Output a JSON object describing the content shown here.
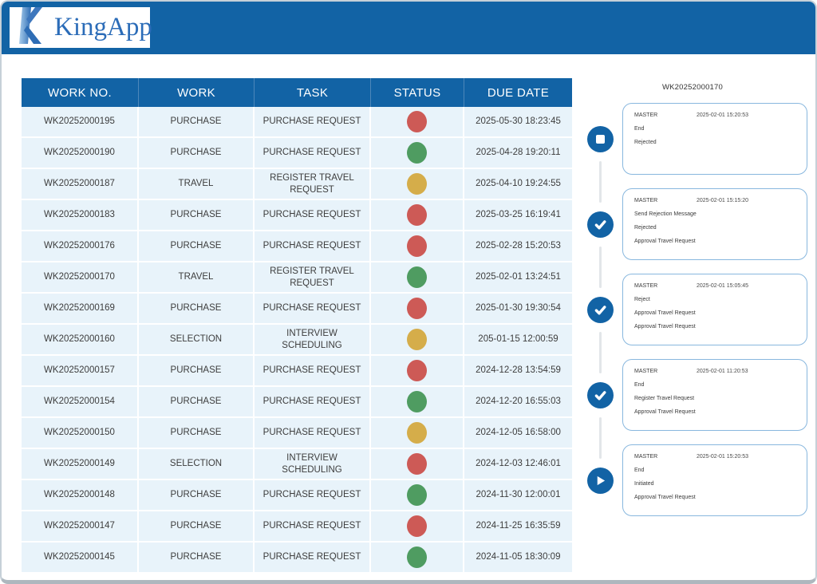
{
  "header": {
    "app_name": "KingApp"
  },
  "accent_color": "#1263a5",
  "status_colors": {
    "red": "#cd5a56",
    "green": "#4f9c61",
    "yellow": "#d5ad4a"
  },
  "table": {
    "columns": [
      "WORK NO.",
      "WORK",
      "TASK",
      "STATUS",
      "DUE DATE"
    ],
    "rows": [
      {
        "work_no": "WK20252000195",
        "work": "PURCHASE",
        "task": "PURCHASE REQUEST",
        "status": "red",
        "due": "2025-05-30 18:23:45"
      },
      {
        "work_no": "WK20252000190",
        "work": "PURCHASE",
        "task": "PURCHASE REQUEST",
        "status": "green",
        "due": "2025-04-28 19:20:11"
      },
      {
        "work_no": "WK20252000187",
        "work": "TRAVEL",
        "task": "REGISTER TRAVEL REQUEST",
        "status": "yellow",
        "due": "2025-04-10 19:24:55"
      },
      {
        "work_no": "WK20252000183",
        "work": "PURCHASE",
        "task": "PURCHASE REQUEST",
        "status": "red",
        "due": "2025-03-25 16:19:41"
      },
      {
        "work_no": "WK20252000176",
        "work": "PURCHASE",
        "task": "PURCHASE REQUEST",
        "status": "red",
        "due": "2025-02-28 15:20:53"
      },
      {
        "work_no": "WK20252000170",
        "work": "TRAVEL",
        "task": "REGISTER TRAVEL REQUEST",
        "status": "green",
        "due": "2025-02-01 13:24:51"
      },
      {
        "work_no": "WK20252000169",
        "work": "PURCHASE",
        "task": "PURCHASE REQUEST",
        "status": "red",
        "due": "2025-01-30 19:30:54"
      },
      {
        "work_no": "WK20252000160",
        "work": "SELECTION",
        "task": "INTERVIEW SCHEDULING",
        "status": "yellow",
        "due": "205-01-15 12:00:59"
      },
      {
        "work_no": "WK20252000157",
        "work": "PURCHASE",
        "task": "PURCHASE REQUEST",
        "status": "red",
        "due": "2024-12-28 13:54:59"
      },
      {
        "work_no": "WK20252000154",
        "work": "PURCHASE",
        "task": "PURCHASE REQUEST",
        "status": "green",
        "due": "2024-12-20 16:55:03"
      },
      {
        "work_no": "WK20252000150",
        "work": "PURCHASE",
        "task": "PURCHASE REQUEST",
        "status": "yellow",
        "due": "2024-12-05 16:58:00"
      },
      {
        "work_no": "WK20252000149",
        "work": "SELECTION",
        "task": "INTERVIEW SCHEDULING",
        "status": "red",
        "due": "2024-12-03 12:46:01"
      },
      {
        "work_no": "WK20252000148",
        "work": "PURCHASE",
        "task": "PURCHASE REQUEST",
        "status": "green",
        "due": "2024-11-30 12:00:01"
      },
      {
        "work_no": "WK20252000147",
        "work": "PURCHASE",
        "task": "PURCHASE REQUEST",
        "status": "red",
        "due": "2024-11-25 16:35:59"
      },
      {
        "work_no": "WK20252000145",
        "work": "PURCHASE",
        "task": "PURCHASE REQUEST",
        "status": "green",
        "due": "2024-11-05 18:30:09"
      }
    ]
  },
  "timeline": {
    "title": "WK20252000170",
    "steps": [
      {
        "icon": "stop",
        "who": "MASTER",
        "timestamp": "2025-02-01 15:20:53",
        "lines": [
          "End",
          "Rejected"
        ]
      },
      {
        "icon": "check",
        "who": "MASTER",
        "timestamp": "2025-02-01 15:15:20",
        "lines": [
          "Send Rejection Message",
          "Rejected",
          "Approval Travel Request"
        ]
      },
      {
        "icon": "check",
        "who": "MASTER",
        "timestamp": "2025-02-01 15:05:45",
        "lines": [
          "Reject",
          "Approval Travel Request",
          "Approval Travel Request"
        ]
      },
      {
        "icon": "check",
        "who": "MASTER",
        "timestamp": "2025-02-01 11:20:53",
        "lines": [
          "End",
          "Register Travel Request",
          "Approval Travel Request"
        ]
      },
      {
        "icon": "play",
        "who": "MASTER",
        "timestamp": "2025-02-01 15:20:53",
        "lines": [
          "End",
          "Initiated",
          "Approval Travel Request"
        ]
      }
    ]
  }
}
